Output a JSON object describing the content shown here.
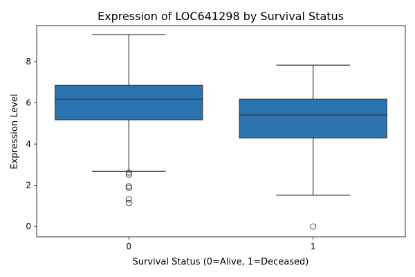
{
  "chart_data": {
    "type": "box",
    "title": "Expression of LOC641298 by Survival Status",
    "xlabel": "Survival Status (0=Alive, 1=Deceased)",
    "ylabel": "Expression Level",
    "categories": [
      "0",
      "1"
    ],
    "ylim": [
      -0.5,
      9.75
    ],
    "yticks": [
      0,
      2,
      4,
      6,
      8
    ],
    "grid": false,
    "box_color": "#2b74b1",
    "edge_color": "#3d3d3d",
    "boxes": [
      {
        "category": "0",
        "whisker_low": 2.68,
        "q1": 5.18,
        "median": 6.18,
        "q3": 6.85,
        "whisker_high": 9.32,
        "outliers": [
          2.62,
          2.52,
          1.95,
          1.88,
          1.32,
          1.14
        ]
      },
      {
        "category": "1",
        "whisker_low": 1.52,
        "q1": 4.3,
        "median": 5.42,
        "q3": 6.18,
        "whisker_high": 7.83,
        "outliers": [
          0.0
        ]
      }
    ]
  }
}
